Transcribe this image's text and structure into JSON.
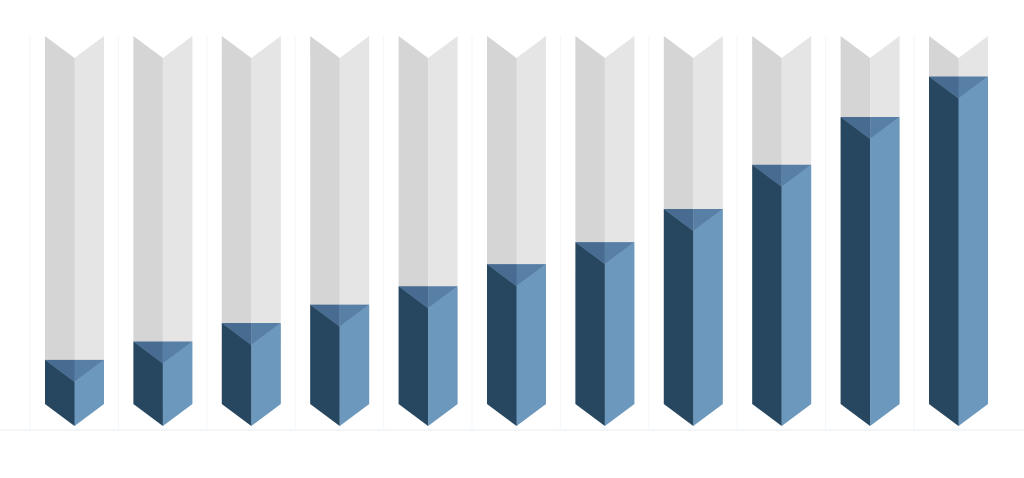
{
  "chart_data": {
    "type": "bar",
    "style": "3d-prism-progress-bars",
    "categories": [
      "",
      "",
      "",
      "",
      "",
      "",
      "",
      "",
      "",
      "",
      ""
    ],
    "values": [
      12,
      17,
      22,
      27,
      32,
      38,
      44,
      53,
      65,
      78,
      89
    ],
    "ylim": [
      0,
      100
    ],
    "unit": "percent fill",
    "grid": false,
    "legend": "none",
    "colors": {
      "fill_left": "#26475f",
      "fill_right": "#6b98bc",
      "fill_top_left": "#476b91",
      "fill_top_right": "#587fa6",
      "track_left": "#d5d5d5",
      "track_right": "#e5e5e5",
      "separator": "#f3f6f9"
    }
  }
}
